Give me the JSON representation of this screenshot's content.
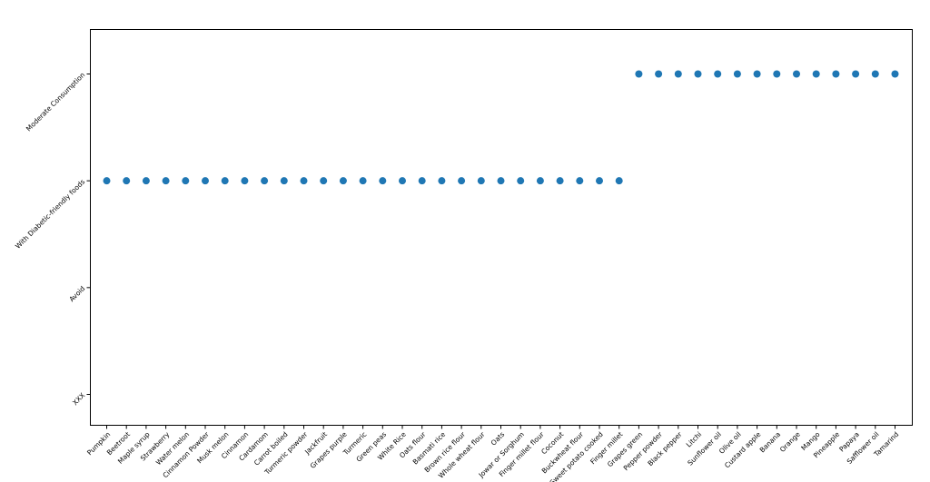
{
  "chart_data": {
    "type": "scatter",
    "categories": [
      "Pumpkin",
      "Beetroot",
      "Maple syrup",
      "Strawberry",
      "Water melon",
      "Cinnamon Powder",
      "Musk melon",
      "Cinnamon",
      "Cardamom",
      "Carrot boiled",
      "Turmeric powder",
      "Jackfruit",
      "Grapes purple",
      "Turmeric",
      "Green peas",
      "White Rice",
      "Oats flour",
      "Basmati rice",
      "Brown rice flour",
      "Whole wheat flour",
      "Oats",
      "Jowar or Sorghum",
      "Finger millet flour",
      "Coconut",
      "Buckwheat flour",
      "Sweet potato cooked",
      "Finger millet",
      "Grapes green",
      "Pepper powder",
      "Black pepper",
      "Litchi",
      "Sunflower oil",
      "Olive oil",
      "Custard apple",
      "Banana",
      "Orange",
      "Mango",
      "Pineapple",
      "Papaya",
      "Safflower oil",
      "Tamarind"
    ],
    "y_categories": [
      "XXX",
      "Avoid",
      "With Diabetic-friendly foods",
      "Moderate Consumption"
    ],
    "values": [
      "With Diabetic-friendly foods",
      "With Diabetic-friendly foods",
      "With Diabetic-friendly foods",
      "With Diabetic-friendly foods",
      "With Diabetic-friendly foods",
      "With Diabetic-friendly foods",
      "With Diabetic-friendly foods",
      "With Diabetic-friendly foods",
      "With Diabetic-friendly foods",
      "With Diabetic-friendly foods",
      "With Diabetic-friendly foods",
      "With Diabetic-friendly foods",
      "With Diabetic-friendly foods",
      "With Diabetic-friendly foods",
      "With Diabetic-friendly foods",
      "With Diabetic-friendly foods",
      "With Diabetic-friendly foods",
      "With Diabetic-friendly foods",
      "With Diabetic-friendly foods",
      "With Diabetic-friendly foods",
      "With Diabetic-friendly foods",
      "With Diabetic-friendly foods",
      "With Diabetic-friendly foods",
      "With Diabetic-friendly foods",
      "With Diabetic-friendly foods",
      "With Diabetic-friendly foods",
      "With Diabetic-friendly foods",
      "Moderate Consumption",
      "Moderate Consumption",
      "Moderate Consumption",
      "Moderate Consumption",
      "Moderate Consumption",
      "Moderate Consumption",
      "Moderate Consumption",
      "Moderate Consumption",
      "Moderate Consumption",
      "Moderate Consumption",
      "Moderate Consumption",
      "Moderate Consumption",
      "Moderate Consumption",
      "Moderate Consumption"
    ],
    "color": "#1f77b4"
  }
}
